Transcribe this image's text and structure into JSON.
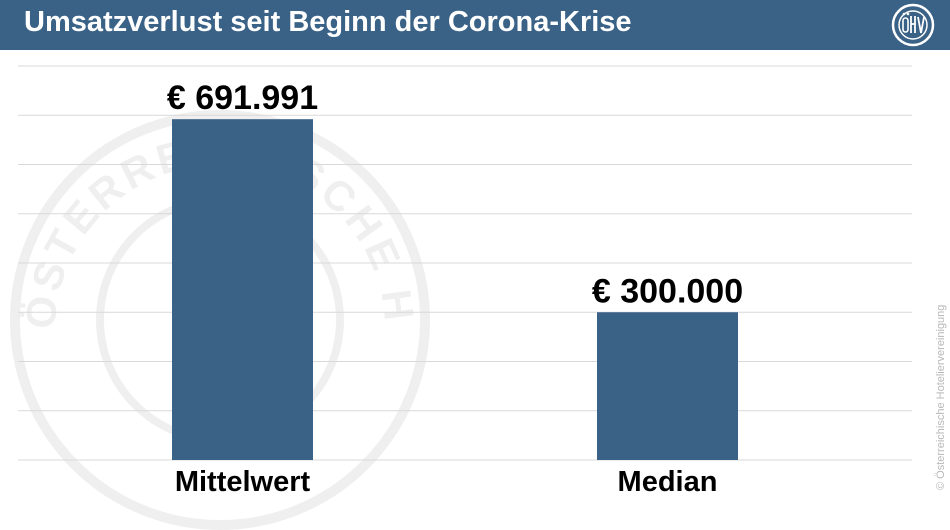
{
  "header": {
    "title": "Umsatzverlust seit Beginn der Corona-Krise",
    "logo_text": "ÖHV"
  },
  "watermark": {
    "text": "ÖSTERREICHISCHE HOTELIERVEREINIGUNG"
  },
  "copyright": "© Österreichische Hoteliervereinigung",
  "colors": {
    "header_bg": "#3a6186",
    "bar": "#3a6186",
    "grid": "#d9d9d9"
  },
  "chart_data": {
    "type": "bar",
    "title": "",
    "categories": [
      "Mittelwert",
      "Median"
    ],
    "values": [
      691991,
      300000
    ],
    "data_labels": [
      "€ 691.991",
      "€ 300.000"
    ],
    "xlabel": "",
    "ylabel": "",
    "ylim": [
      0,
      800000
    ],
    "grid": true,
    "legend": "none"
  }
}
